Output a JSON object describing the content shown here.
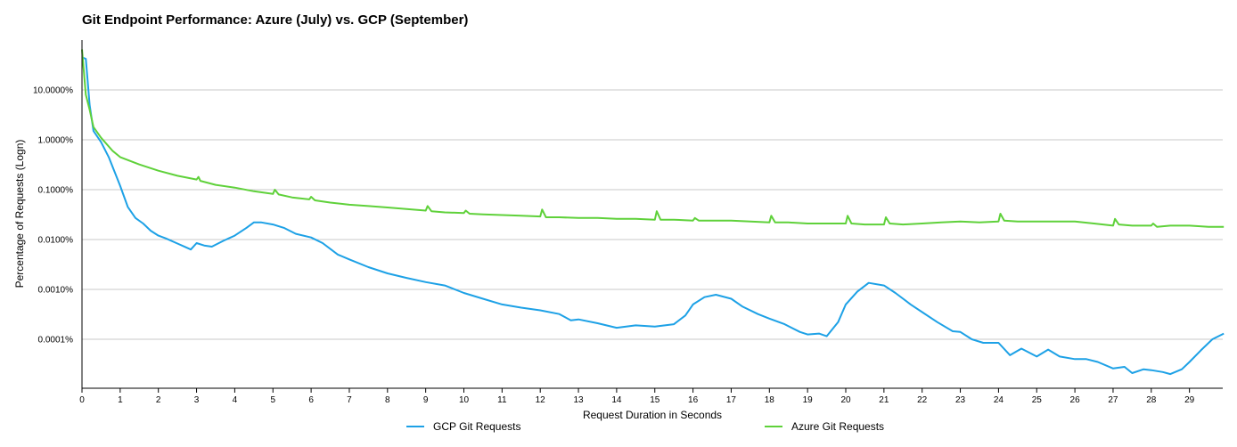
{
  "chart_data": {
    "type": "line",
    "title": "Git Endpoint Performance: Azure (July) vs. GCP (September)",
    "xlabel": "Request Duration in Seconds",
    "ylabel": "Percentage of Requests (Logn)",
    "y_scale": "log",
    "ylim": [
      1.5e-05,
      60
    ],
    "xlim": [
      0,
      30
    ],
    "x_ticks": [
      0,
      1,
      2,
      3,
      4,
      5,
      6,
      7,
      8,
      9,
      10,
      11,
      12,
      13,
      14,
      15,
      16,
      17,
      18,
      19,
      20,
      21,
      22,
      23,
      24,
      25,
      26,
      27,
      28,
      29
    ],
    "y_ticks": [
      {
        "value": 10,
        "label": "10.0000%"
      },
      {
        "value": 1,
        "label": "1.0000%"
      },
      {
        "value": 0.1,
        "label": "0.1000%"
      },
      {
        "value": 0.01,
        "label": "0.0100%"
      },
      {
        "value": 0.001,
        "label": "0.0010%"
      },
      {
        "value": 0.0001,
        "label": "0.0001%"
      }
    ],
    "grid": true,
    "legend_position": "bottom",
    "series": [
      {
        "name": "GCP Git Requests",
        "color": "#1da1e6",
        "points": [
          [
            0,
            45
          ],
          [
            0.1,
            42
          ],
          [
            0.2,
            5
          ],
          [
            0.3,
            1.5
          ],
          [
            0.5,
            0.9
          ],
          [
            0.7,
            0.45
          ],
          [
            1,
            0.12
          ],
          [
            1.2,
            0.045
          ],
          [
            1.4,
            0.027
          ],
          [
            1.6,
            0.021
          ],
          [
            1.8,
            0.015
          ],
          [
            2,
            0.012
          ],
          [
            2.2,
            0.0105
          ],
          [
            2.5,
            0.0083
          ],
          [
            2.7,
            0.0071
          ],
          [
            2.85,
            0.0063
          ],
          [
            3,
            0.0085
          ],
          [
            3.2,
            0.0076
          ],
          [
            3.4,
            0.0072
          ],
          [
            3.7,
            0.0094
          ],
          [
            4,
            0.012
          ],
          [
            4.3,
            0.017
          ],
          [
            4.5,
            0.022
          ],
          [
            4.7,
            0.022
          ],
          [
            5,
            0.02
          ],
          [
            5.3,
            0.017
          ],
          [
            5.6,
            0.013
          ],
          [
            6,
            0.011
          ],
          [
            6.3,
            0.0085
          ],
          [
            6.7,
            0.005
          ],
          [
            7,
            0.004
          ],
          [
            7.5,
            0.0028
          ],
          [
            8,
            0.0021
          ],
          [
            8.5,
            0.0017
          ],
          [
            9,
            0.0014
          ],
          [
            9.5,
            0.0012
          ],
          [
            10,
            0.00085
          ],
          [
            10.5,
            0.00065
          ],
          [
            11,
            0.0005
          ],
          [
            11.5,
            0.00043
          ],
          [
            12,
            0.00038
          ],
          [
            12.5,
            0.00032
          ],
          [
            12.8,
            0.00024
          ],
          [
            13,
            0.00025
          ],
          [
            13.5,
            0.00021
          ],
          [
            14,
            0.00017
          ],
          [
            14.5,
            0.00019
          ],
          [
            15,
            0.00018
          ],
          [
            15.5,
            0.0002
          ],
          [
            15.8,
            0.0003
          ],
          [
            16,
            0.0005
          ],
          [
            16.3,
            0.0007
          ],
          [
            16.6,
            0.00078
          ],
          [
            17,
            0.00065
          ],
          [
            17.3,
            0.00045
          ],
          [
            17.7,
            0.00032
          ],
          [
            18,
            0.00026
          ],
          [
            18.4,
            0.0002
          ],
          [
            18.8,
            0.00014
          ],
          [
            19,
            0.000125
          ],
          [
            19.3,
            0.00013
          ],
          [
            19.5,
            0.000115
          ],
          [
            19.8,
            0.00022
          ],
          [
            20,
            0.0005
          ],
          [
            20.3,
            0.0009
          ],
          [
            20.6,
            0.00135
          ],
          [
            21,
            0.0012
          ],
          [
            21.3,
            0.00085
          ],
          [
            21.7,
            0.0005
          ],
          [
            22,
            0.00035
          ],
          [
            22.4,
            0.00022
          ],
          [
            22.8,
            0.000145
          ],
          [
            23,
            0.00014
          ],
          [
            23.3,
            0.0001
          ],
          [
            23.6,
            8.5e-05
          ],
          [
            24,
            8.5e-05
          ],
          [
            24.3,
            4.8e-05
          ],
          [
            24.6,
            6.5e-05
          ],
          [
            25,
            4.5e-05
          ],
          [
            25.3,
            6.2e-05
          ],
          [
            25.6,
            4.5e-05
          ],
          [
            26,
            4e-05
          ],
          [
            26.3,
            4e-05
          ],
          [
            26.6,
            3.5e-05
          ],
          [
            27,
            2.6e-05
          ],
          [
            27.3,
            2.8e-05
          ],
          [
            27.5,
            2.1e-05
          ],
          [
            27.8,
            2.5e-05
          ],
          [
            28,
            2.4e-05
          ],
          [
            28.3,
            2.2e-05
          ],
          [
            28.5,
            2e-05
          ],
          [
            28.8,
            2.5e-05
          ],
          [
            29,
            3.5e-05
          ],
          [
            29.3,
            6e-05
          ],
          [
            29.6,
            0.0001
          ],
          [
            29.9,
            0.00013
          ]
        ]
      },
      {
        "name": "Azure Git Requests",
        "color": "#5fd13a",
        "points": [
          [
            0,
            65
          ],
          [
            0.1,
            8
          ],
          [
            0.2,
            4
          ],
          [
            0.3,
            1.8
          ],
          [
            0.5,
            1.1
          ],
          [
            0.8,
            0.6
          ],
          [
            1,
            0.45
          ],
          [
            1.5,
            0.32
          ],
          [
            2,
            0.24
          ],
          [
            2.5,
            0.19
          ],
          [
            3,
            0.16
          ],
          [
            3.05,
            0.18
          ],
          [
            3.1,
            0.15
          ],
          [
            3.5,
            0.125
          ],
          [
            4,
            0.11
          ],
          [
            4.5,
            0.093
          ],
          [
            5,
            0.082
          ],
          [
            5.05,
            0.1
          ],
          [
            5.15,
            0.08
          ],
          [
            5.5,
            0.07
          ],
          [
            5.95,
            0.064
          ],
          [
            6,
            0.072
          ],
          [
            6.1,
            0.061
          ],
          [
            6.5,
            0.055
          ],
          [
            7,
            0.05
          ],
          [
            7.5,
            0.047
          ],
          [
            8,
            0.044
          ],
          [
            8.5,
            0.041
          ],
          [
            9,
            0.038
          ],
          [
            9.05,
            0.047
          ],
          [
            9.15,
            0.037
          ],
          [
            9.5,
            0.035
          ],
          [
            10,
            0.034
          ],
          [
            10.05,
            0.038
          ],
          [
            10.15,
            0.033
          ],
          [
            10.5,
            0.032
          ],
          [
            11,
            0.031
          ],
          [
            11.5,
            0.03
          ],
          [
            12,
            0.029
          ],
          [
            12.05,
            0.04
          ],
          [
            12.15,
            0.028
          ],
          [
            12.5,
            0.028
          ],
          [
            13,
            0.027
          ],
          [
            13.5,
            0.027
          ],
          [
            14,
            0.026
          ],
          [
            14.5,
            0.026
          ],
          [
            15,
            0.025
          ],
          [
            15.05,
            0.037
          ],
          [
            15.15,
            0.025
          ],
          [
            15.5,
            0.025
          ],
          [
            16,
            0.024
          ],
          [
            16.05,
            0.027
          ],
          [
            16.15,
            0.024
          ],
          [
            16.5,
            0.024
          ],
          [
            17,
            0.024
          ],
          [
            17.5,
            0.023
          ],
          [
            18,
            0.022
          ],
          [
            18.05,
            0.03
          ],
          [
            18.15,
            0.022
          ],
          [
            18.5,
            0.022
          ],
          [
            19,
            0.021
          ],
          [
            19.5,
            0.021
          ],
          [
            20,
            0.021
          ],
          [
            20.05,
            0.03
          ],
          [
            20.15,
            0.021
          ],
          [
            20.5,
            0.02
          ],
          [
            21,
            0.02
          ],
          [
            21.05,
            0.028
          ],
          [
            21.15,
            0.021
          ],
          [
            21.5,
            0.02
          ],
          [
            22,
            0.021
          ],
          [
            22.5,
            0.022
          ],
          [
            23,
            0.023
          ],
          [
            23.5,
            0.022
          ],
          [
            24,
            0.023
          ],
          [
            24.05,
            0.033
          ],
          [
            24.15,
            0.024
          ],
          [
            24.5,
            0.023
          ],
          [
            25,
            0.023
          ],
          [
            25.5,
            0.023
          ],
          [
            26,
            0.023
          ],
          [
            26.5,
            0.021
          ],
          [
            27,
            0.019
          ],
          [
            27.05,
            0.026
          ],
          [
            27.15,
            0.02
          ],
          [
            27.5,
            0.019
          ],
          [
            28,
            0.019
          ],
          [
            28.05,
            0.021
          ],
          [
            28.15,
            0.018
          ],
          [
            28.5,
            0.019
          ],
          [
            29,
            0.019
          ],
          [
            29.5,
            0.018
          ],
          [
            29.9,
            0.018
          ]
        ]
      }
    ]
  }
}
